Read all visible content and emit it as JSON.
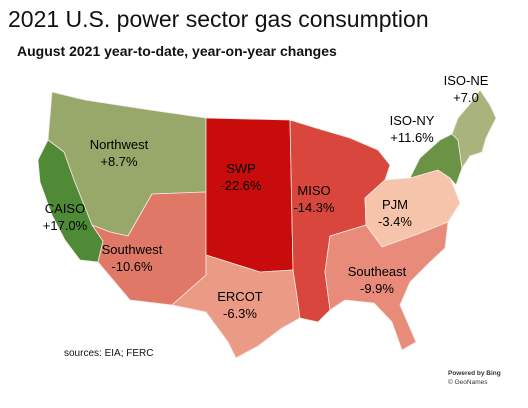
{
  "title": "2021 U.S. power sector gas consumption",
  "subtitle": "August 2021 year-to-date, year-on-year changes",
  "source": "sources: EIA; FERC",
  "attribution": {
    "line1": "Powered by Bing",
    "line2": "© GeoNames"
  },
  "colors": {
    "northwest": "#98a86a",
    "caiso": "#4f8a36",
    "southwest": "#e07868",
    "ercot": "#eb9a86",
    "swp": "#c80c0c",
    "miso": "#d9463e",
    "pjm": "#f5c4ab",
    "southeast": "#e98b7a",
    "isony": "#6b9345",
    "isone": "#a9b47c",
    "border": "#f4e8e0"
  },
  "regions": [
    {
      "id": "northwest",
      "name": "Northwest",
      "change": "+8.7%",
      "change_value": 8.7
    },
    {
      "id": "caiso",
      "name": "CAISO",
      "change": "+17.0%",
      "change_value": 17.0
    },
    {
      "id": "southwest",
      "name": "Southwest",
      "change": "-10.6%",
      "change_value": -10.6
    },
    {
      "id": "ercot",
      "name": "ERCOT",
      "change": "-6.3%",
      "change_value": -6.3
    },
    {
      "id": "swp",
      "name": "SWP",
      "change": "-22.6%",
      "change_value": -22.6
    },
    {
      "id": "miso",
      "name": "MISO",
      "change": "-14.3%",
      "change_value": -14.3
    },
    {
      "id": "pjm",
      "name": "PJM",
      "change": "-3.4%",
      "change_value": -3.4
    },
    {
      "id": "southeast",
      "name": "Southeast",
      "change": "-9.9%",
      "change_value": -9.9
    },
    {
      "id": "isony",
      "name": "ISO-NY",
      "change": "+11.6%",
      "change_value": 11.6
    },
    {
      "id": "isone",
      "name": "ISO-NE",
      "change": "+7.0",
      "change_value": 7.0
    }
  ]
}
